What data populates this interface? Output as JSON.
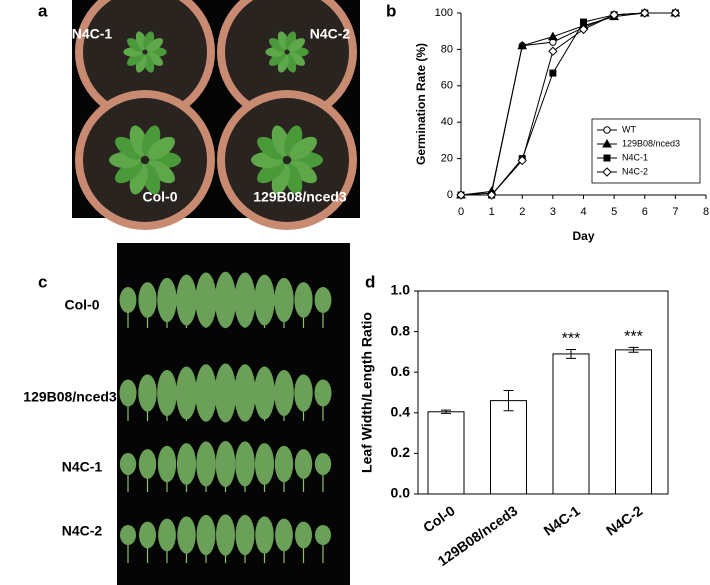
{
  "panel_labels": [
    "a",
    "b",
    "c",
    "d"
  ],
  "photo_a": {
    "labels": [
      "N4C-1",
      "N4C-2",
      "Col-0",
      "129B08/nced3"
    ]
  },
  "photo_c": {
    "labels": [
      "Col-0",
      "129B08/nced3",
      "N4C-1",
      "N4C-2"
    ]
  },
  "chart_data": [
    {
      "type": "line",
      "xlabel": "Day",
      "ylabel": "Germination Rate (%)",
      "x": [
        0,
        1,
        2,
        3,
        4,
        5,
        6,
        7
      ],
      "xlim": [
        0,
        8
      ],
      "xticks": [
        0,
        1,
        2,
        3,
        4,
        5,
        6,
        7,
        8
      ],
      "ylim": [
        0,
        100
      ],
      "yticks": [
        0,
        20,
        40,
        60,
        80,
        100
      ],
      "legend": "lower right",
      "series": [
        {
          "name": "WT",
          "color": "#000000",
          "marker": "circle-open",
          "values": [
            0,
            1,
            82,
            84,
            92,
            99,
            100,
            100
          ]
        },
        {
          "name": "129B08/nced3",
          "color": "#000000",
          "marker": "triangle",
          "values": [
            0,
            2,
            82,
            87,
            93,
            98,
            100,
            100
          ]
        },
        {
          "name": "N4C-1",
          "color": "#000000",
          "marker": "square",
          "values": [
            0,
            0,
            20,
            67,
            95,
            99,
            100,
            100
          ]
        },
        {
          "name": "N4C-2",
          "color": "#000000",
          "marker": "diamond-open",
          "values": [
            0,
            0,
            19,
            79,
            91,
            99,
            100,
            100
          ]
        }
      ]
    },
    {
      "type": "bar",
      "ylabel": "Leaf Width/Length Ratio",
      "categories": [
        "Col-0",
        "129B08/nced3",
        "N4C-1",
        "N4C-2"
      ],
      "values": [
        0.405,
        0.46,
        0.69,
        0.71
      ],
      "errors": [
        0.008,
        0.05,
        0.022,
        0.012
      ],
      "value_annotations": [
        null,
        null,
        "***",
        "***"
      ],
      "color": "#ffffff",
      "ylim": [
        0,
        1
      ],
      "yticks": [
        {
          "value": 0,
          "label": "0.0"
        },
        {
          "value": 0.2,
          "label": "0.2"
        },
        {
          "value": 0.4,
          "label": "0.4"
        },
        {
          "value": 0.6,
          "label": "0.6"
        },
        {
          "value": 0.8,
          "label": "0.8"
        },
        {
          "value": 1,
          "label": "1.0"
        }
      ]
    }
  ]
}
